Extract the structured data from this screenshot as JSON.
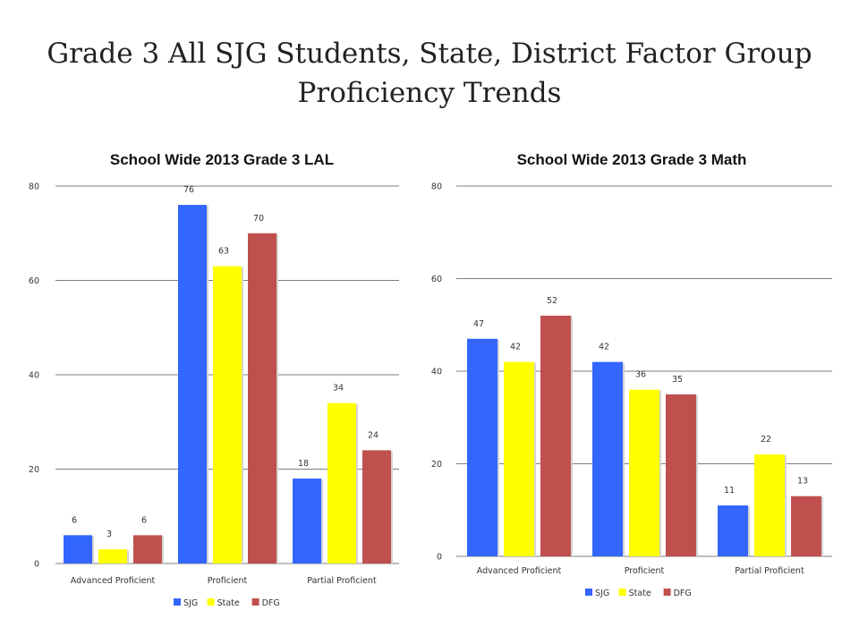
{
  "slide": {
    "title_line1": "Grade 3 All SJG Students, State, District Factor Group",
    "title_line2": "Proficiency Trends"
  },
  "chart_data": [
    {
      "type": "bar",
      "title": "School Wide 2013 Grade 3 LAL",
      "categories": [
        "Advanced Proficient",
        "Proficient",
        "Partial Proficient"
      ],
      "series": [
        {
          "name": "SJG",
          "color": "#3366FF",
          "values": [
            6,
            76,
            18
          ]
        },
        {
          "name": "State",
          "color": "#FFFF00",
          "values": [
            3,
            63,
            34
          ]
        },
        {
          "name": "DFG",
          "color": "#C0504D",
          "values": [
            6,
            70,
            24
          ]
        }
      ],
      "ylim": [
        0,
        80
      ],
      "yticks": [
        0,
        20,
        40,
        60,
        80
      ],
      "grid": true,
      "legend": "bottom"
    },
    {
      "type": "bar",
      "title": "School Wide 2013 Grade 3 Math",
      "categories": [
        "Advanced Proficient",
        "Proficient",
        "Partial Proficient"
      ],
      "series": [
        {
          "name": "SJG",
          "color": "#3366FF",
          "values": [
            47,
            42,
            11
          ]
        },
        {
          "name": "State",
          "color": "#FFFF00",
          "values": [
            42,
            36,
            22
          ]
        },
        {
          "name": "DFG",
          "color": "#C0504D",
          "values": [
            52,
            35,
            13
          ]
        }
      ],
      "ylim": [
        0,
        80
      ],
      "yticks": [
        0,
        20,
        40,
        60,
        80
      ],
      "grid": true,
      "legend": "bottom"
    }
  ]
}
